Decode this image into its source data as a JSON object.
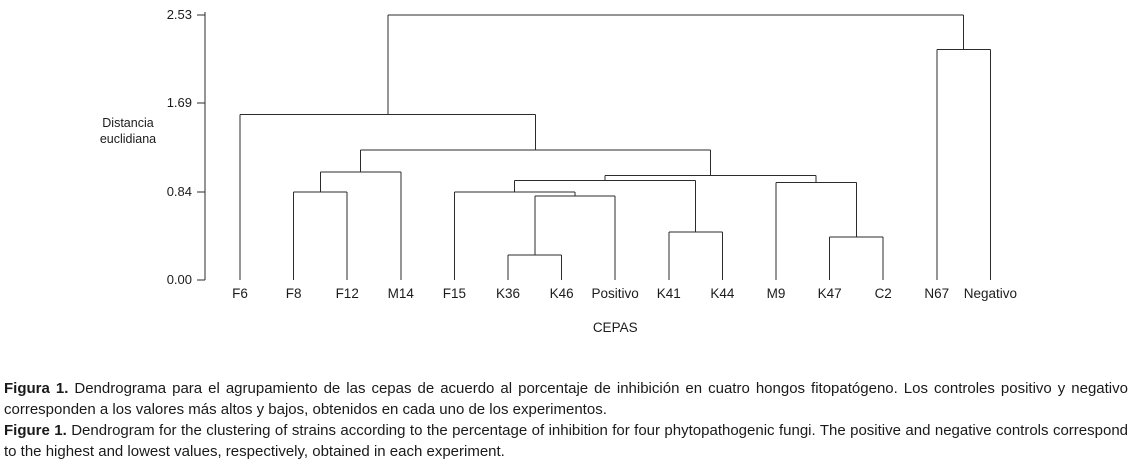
{
  "figure": {
    "caption_es_label": "Figura 1.",
    "caption_es_text": "Dendrograma para el agrupamiento de las cepas de acuerdo al porcentaje de inhibición en cuatro hongos fitopatógeno. Los controles positivo y negativo corresponden a los valores más altos y bajos, obtenidos en cada uno de los experimentos.",
    "caption_en_label": "Figure 1.",
    "caption_en_text": "Dendrogram for the clustering of strains according to the percentage of inhibition for four phytopathogenic fungi. The positive and negative controls correspond to the highest and lowest values, respectively, obtained in each experiment."
  },
  "chart_data": {
    "type": "dendrogram",
    "title": "",
    "xlabel": "CEPAS",
    "ylabel": "Distancia euclidiana",
    "ylabel_lines": [
      "Distancia",
      "euclidiana"
    ],
    "y_ticks": [
      "2.53",
      "1.69",
      "0.84",
      "0.00"
    ],
    "ylim": [
      0,
      2.53
    ],
    "grid": false,
    "line_color": "#2b2b2b",
    "leaves": [
      "F6",
      "F8",
      "F12",
      "M14",
      "F15",
      "K36",
      "K46",
      "Positivo",
      "K41",
      "K44",
      "M9",
      "K47",
      "C2",
      "N67",
      "Negativo"
    ],
    "tree": {
      "height": 2.53,
      "children": [
        {
          "height": 1.58,
          "children": [
            {
              "leaf": "F6"
            },
            {
              "height": 1.24,
              "children": [
                {
                  "height": 1.03,
                  "children": [
                    {
                      "height": 0.84,
                      "children": [
                        {
                          "leaf": "F8"
                        },
                        {
                          "leaf": "F12"
                        }
                      ]
                    },
                    {
                      "leaf": "M14"
                    }
                  ]
                },
                {
                  "height": 1.0,
                  "children": [
                    {
                      "height": 0.95,
                      "children": [
                        {
                          "height": 0.84,
                          "children": [
                            {
                              "leaf": "F15"
                            },
                            {
                              "height": 0.8,
                              "children": [
                                {
                                  "height": 0.24,
                                  "children": [
                                    {
                                      "leaf": "K36"
                                    },
                                    {
                                      "leaf": "K46"
                                    }
                                  ]
                                },
                                {
                                  "leaf": "Positivo"
                                }
                              ]
                            }
                          ]
                        },
                        {
                          "height": 0.46,
                          "children": [
                            {
                              "leaf": "K41"
                            },
                            {
                              "leaf": "K44"
                            }
                          ]
                        }
                      ]
                    },
                    {
                      "height": 0.93,
                      "children": [
                        {
                          "leaf": "M9"
                        },
                        {
                          "height": 0.41,
                          "children": [
                            {
                              "leaf": "K47"
                            },
                            {
                              "leaf": "C2"
                            }
                          ]
                        }
                      ]
                    }
                  ]
                }
              ]
            }
          ]
        },
        {
          "height": 2.2,
          "children": [
            {
              "leaf": "N67"
            },
            {
              "leaf": "Negativo"
            }
          ]
        }
      ]
    }
  }
}
